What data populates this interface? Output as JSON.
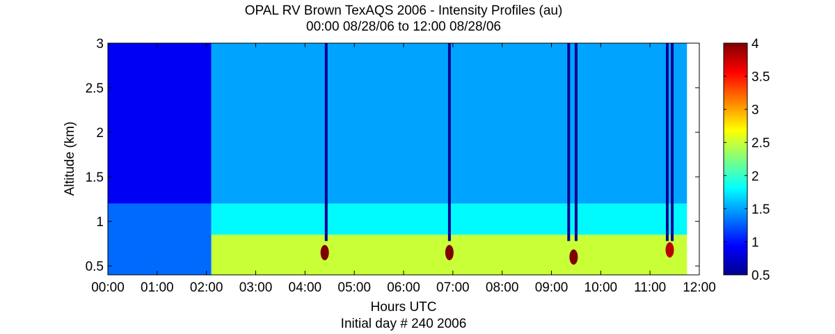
{
  "chart_data": {
    "type": "heatmap",
    "title": "OPAL RV Brown TexAQS 2006 - Intensity Profiles (au)",
    "subtitle": "00:00 08/28/06 to 12:00 08/28/06",
    "xlabel": "Hours UTC",
    "xlabel2": "Initial day # 240  2006",
    "ylabel": "Altitude (km)",
    "xlim": [
      0,
      12
    ],
    "ylim": [
      0.4,
      3
    ],
    "x_ticks": [
      0,
      1,
      2,
      3,
      4,
      5,
      6,
      7,
      8,
      9,
      10,
      11,
      12
    ],
    "x_tick_labels": [
      "00:00",
      "01:00",
      "02:00",
      "03:00",
      "04:00",
      "05:00",
      "06:00",
      "07:00",
      "08:00",
      "09:00",
      "10:00",
      "11:00",
      "12:00"
    ],
    "y_ticks": [
      0.5,
      1,
      1.5,
      2,
      2.5,
      3
    ],
    "y_tick_labels": [
      "0.5",
      "1",
      "1.5",
      "2",
      "2.5",
      "3"
    ],
    "colorbar": {
      "range": [
        0.5,
        4
      ],
      "ticks": [
        0.5,
        1,
        1.5,
        2,
        2.5,
        3,
        3.5,
        4
      ],
      "tick_labels": [
        "0.5",
        "1",
        "1.5",
        "2",
        "2.5",
        "3",
        "3.5",
        "4"
      ],
      "colormap": "jet"
    },
    "data_extent_hours": [
      0,
      11.75
    ],
    "regions": [
      {
        "x": [
          0,
          2.1
        ],
        "y": [
          1.2,
          3
        ],
        "value": 0.9
      },
      {
        "x": [
          0,
          2.1
        ],
        "y": [
          0.4,
          1.2
        ],
        "value": 1.3
      },
      {
        "x": [
          2.1,
          11.75
        ],
        "y": [
          1.2,
          3
        ],
        "value": 1.5
      },
      {
        "x": [
          2.1,
          11.75
        ],
        "y": [
          0.85,
          1.2
        ],
        "value": 1.8
      },
      {
        "x": [
          2.1,
          11.75
        ],
        "y": [
          0.4,
          0.85
        ],
        "value": 2.5
      }
    ],
    "low_signal_columns_hours": [
      4.43,
      6.93,
      9.35,
      9.5,
      11.35,
      11.45
    ],
    "high_intensity_spots": [
      {
        "x": 4.4,
        "y": 0.65,
        "value": 4
      },
      {
        "x": 6.93,
        "y": 0.65,
        "value": 4
      },
      {
        "x": 9.45,
        "y": 0.6,
        "value": 4
      },
      {
        "x": 11.4,
        "y": 0.68,
        "value": 3.8
      }
    ]
  }
}
